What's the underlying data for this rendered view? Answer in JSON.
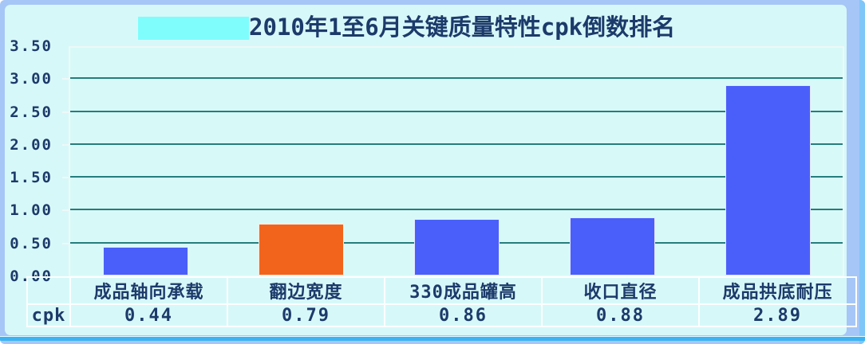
{
  "window": {
    "frame_color": "#a6c6f7",
    "panel_color": "#d7f8f8",
    "bottom_edge_color": "#3ab4f2",
    "right_strip_color": "#7fc6f8"
  },
  "title": {
    "text": "2010年1至6月关键质量特性cpk倒数排名",
    "color": "#1c3a6a",
    "highlight_color": "#7ffdfd"
  },
  "chart_data": {
    "type": "bar",
    "title": "2010年1至6月关键质量特性cpk倒数排名",
    "categories": [
      "成品轴向承载",
      "翻边宽度",
      "330成品罐高",
      "收口直径",
      "成品拱底耐压"
    ],
    "values": [
      0.44,
      0.79,
      0.86,
      0.88,
      2.89
    ],
    "bar_colors": [
      "#4a5ffa",
      "#f2641c",
      "#4a5ffa",
      "#4a5ffa",
      "#4a5ffa"
    ],
    "xlabel": "",
    "ylabel": "",
    "ylim": [
      0,
      3.5
    ],
    "ytick_step": 0.5,
    "ytick_labels": [
      "0.00",
      "0.50",
      "1.00",
      "1.50",
      "2.00",
      "2.50",
      "3.00",
      "3.50"
    ],
    "grid": true,
    "gridline_color": "#267d7d",
    "legend_position": "none",
    "data_table": {
      "row_label": "cpk",
      "row_values": [
        "0.44",
        "0.79",
        "0.86",
        "0.88",
        "2.89"
      ]
    }
  }
}
